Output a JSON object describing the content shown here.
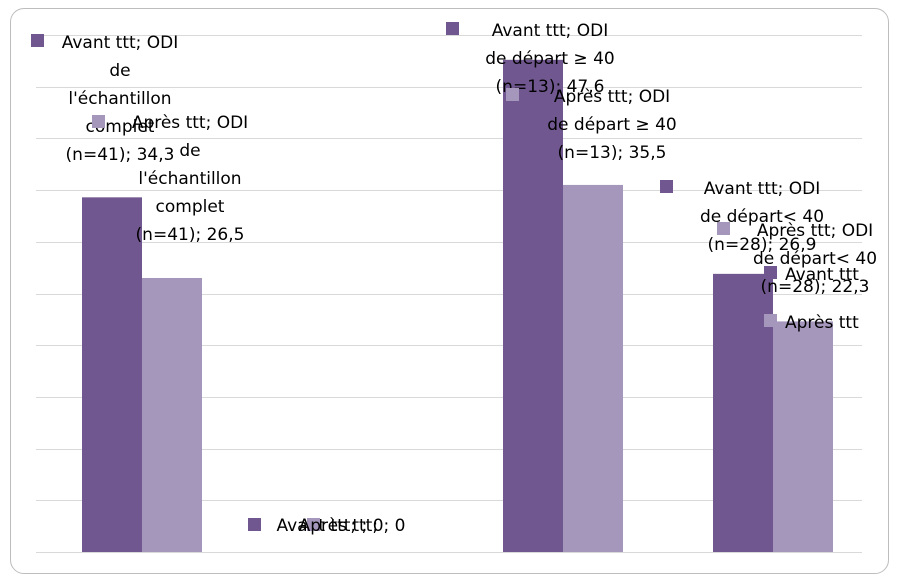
{
  "chart_data": {
    "type": "bar",
    "title": "",
    "xlabel": "",
    "ylabel": "",
    "ylim": [
      0,
      50
    ],
    "grid": true,
    "legend": "none",
    "colors": {
      "avant": "#71578f",
      "apres": "#a597bb",
      "grid": "#d9d9d9",
      "frame": "#bdbdbd"
    },
    "groups": [
      {
        "bars": [
          {
            "series": "avant",
            "value": 34.3,
            "label_lines": [
              "Avant ttt; ODI",
              "de",
              "l'échantillon",
              "complet",
              "(n=41); 34,3"
            ],
            "marker": "avant"
          },
          {
            "series": "apres",
            "value": 26.5,
            "label_lines": [
              "Après ttt; ODI",
              "de",
              "l'échantillon",
              "complet",
              "(n=41); 26,5"
            ],
            "marker": "apres"
          }
        ]
      },
      {
        "bars": [
          {
            "series": "avant",
            "value": 0,
            "label_lines": [
              "Avant ttt; ; 0"
            ],
            "marker": "avant"
          },
          {
            "series": "apres",
            "value": 0,
            "label_lines": [
              "Après ttt; ; 0"
            ],
            "marker": "apres"
          }
        ]
      },
      {
        "bars": [
          {
            "series": "avant",
            "value": 47.6,
            "label_lines": [
              "Avant ttt; ODI",
              "de départ ≥ 40",
              "(n=13); 47,6"
            ],
            "marker": "avant"
          },
          {
            "series": "apres",
            "value": 35.5,
            "label_lines": [
              "Après ttt; ODI",
              "de départ ≥ 40",
              "(n=13); 35,5"
            ],
            "marker": "apres"
          }
        ]
      },
      {
        "bars": [
          {
            "series": "avant",
            "value": 26.9,
            "label_lines": [
              "Avant ttt; ODI",
              "de départ< 40",
              "(n=28); 26,9"
            ],
            "marker": "avant"
          },
          {
            "series": "apres",
            "value": 22.3,
            "label_lines": [
              "Après ttt; ODI",
              "de départ< 40",
              "(n=28); 22,3"
            ],
            "marker": "apres"
          }
        ]
      }
    ],
    "extra_labels": [
      {
        "text": "Avant ttt",
        "marker": "avant"
      },
      {
        "text": "Après ttt",
        "marker": "apres"
      }
    ]
  }
}
